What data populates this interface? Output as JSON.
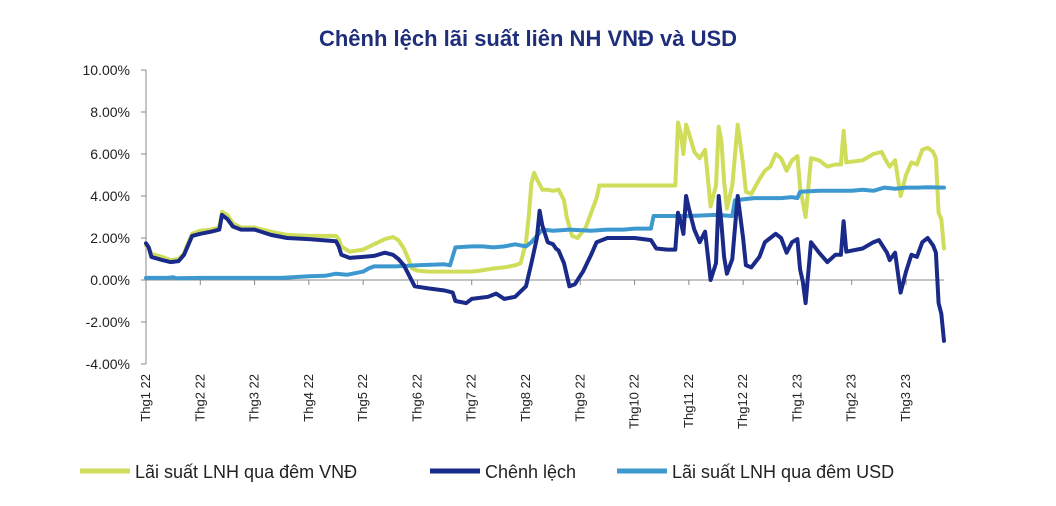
{
  "chart_data": {
    "type": "line",
    "title": "Chênh lệch lãi suất liên NH VNĐ và USD",
    "xlabel": "",
    "ylabel": "",
    "ylim": [
      -0.04,
      0.1
    ],
    "y_ticks": [
      -0.04,
      -0.02,
      0.0,
      0.02,
      0.04,
      0.06,
      0.08,
      0.1
    ],
    "y_tick_labels": [
      "-4.00%",
      "-2.00%",
      "0.00%",
      "2.00%",
      "4.00%",
      "6.00%",
      "8.00%",
      "10.00%"
    ],
    "x_range": [
      0,
      14.7
    ],
    "x_ticks": [
      0,
      1,
      2,
      3,
      4,
      5,
      6,
      7,
      8,
      9,
      10,
      11,
      12,
      13,
      14
    ],
    "x_tick_labels": [
      "Thg1 22",
      "Thg2 22",
      "Thg3 22",
      "Thg4 22",
      "Thg5 22",
      "Thg6 22",
      "Thg7 22",
      "Thg8 22",
      "Thg9 22",
      "Thg10 22",
      "Thg11 22",
      "Thg12 22",
      "Thg1 23",
      "Thg2 23",
      "Thg3 23"
    ],
    "series": [
      {
        "name": "Lãi suất LNH qua đêm VNĐ",
        "color": "#cfdd5a",
        "points": [
          [
            0,
            0.0165
          ],
          [
            0.05,
            0.0155
          ],
          [
            0.1,
            0.0125
          ],
          [
            0.3,
            0.011
          ],
          [
            0.45,
            0.0095
          ],
          [
            0.6,
            0.01
          ],
          [
            0.7,
            0.0125
          ],
          [
            0.75,
            0.016
          ],
          [
            0.85,
            0.022
          ],
          [
            1.0,
            0.0235
          ],
          [
            1.2,
            0.024
          ],
          [
            1.35,
            0.025
          ],
          [
            1.4,
            0.0325
          ],
          [
            1.5,
            0.031
          ],
          [
            1.6,
            0.027
          ],
          [
            1.75,
            0.025
          ],
          [
            2.0,
            0.025
          ],
          [
            2.3,
            0.023
          ],
          [
            2.6,
            0.0215
          ],
          [
            3.0,
            0.021
          ],
          [
            3.5,
            0.021
          ],
          [
            3.55,
            0.0195
          ],
          [
            3.6,
            0.016
          ],
          [
            3.75,
            0.0135
          ],
          [
            4.0,
            0.0145
          ],
          [
            4.2,
            0.017
          ],
          [
            4.4,
            0.0195
          ],
          [
            4.55,
            0.0205
          ],
          [
            4.65,
            0.019
          ],
          [
            4.75,
            0.015
          ],
          [
            4.85,
            0.009
          ],
          [
            4.9,
            0.0055
          ],
          [
            5.0,
            0.0045
          ],
          [
            5.2,
            0.004
          ],
          [
            5.5,
            0.004
          ],
          [
            6.0,
            0.004
          ],
          [
            6.15,
            0.0045
          ],
          [
            6.4,
            0.0055
          ],
          [
            6.6,
            0.006
          ],
          [
            6.8,
            0.007
          ],
          [
            6.9,
            0.008
          ],
          [
            7.0,
            0.018
          ],
          [
            7.05,
            0.03
          ],
          [
            7.1,
            0.046
          ],
          [
            7.15,
            0.051
          ],
          [
            7.2,
            0.048
          ],
          [
            7.3,
            0.043
          ],
          [
            7.4,
            0.043
          ],
          [
            7.5,
            0.0425
          ],
          [
            7.6,
            0.043
          ],
          [
            7.7,
            0.038
          ],
          [
            7.75,
            0.03
          ],
          [
            7.85,
            0.021
          ],
          [
            7.95,
            0.02
          ],
          [
            8.1,
            0.025
          ],
          [
            8.2,
            0.032
          ],
          [
            8.3,
            0.039
          ],
          [
            8.35,
            0.045
          ],
          [
            9.0,
            0.045
          ],
          [
            9.5,
            0.045
          ],
          [
            9.75,
            0.045
          ],
          [
            9.8,
            0.075
          ],
          [
            9.85,
            0.07
          ],
          [
            9.9,
            0.06
          ],
          [
            9.95,
            0.074
          ],
          [
            10.0,
            0.07
          ],
          [
            10.1,
            0.061
          ],
          [
            10.2,
            0.058
          ],
          [
            10.3,
            0.062
          ],
          [
            10.4,
            0.035
          ],
          [
            10.5,
            0.045
          ],
          [
            10.55,
            0.073
          ],
          [
            10.6,
            0.066
          ],
          [
            10.65,
            0.047
          ],
          [
            10.7,
            0.034
          ],
          [
            10.8,
            0.045
          ],
          [
            10.9,
            0.074
          ],
          [
            11.0,
            0.055
          ],
          [
            11.05,
            0.042
          ],
          [
            11.15,
            0.041
          ],
          [
            11.3,
            0.048
          ],
          [
            11.4,
            0.052
          ],
          [
            11.5,
            0.054
          ],
          [
            11.6,
            0.06
          ],
          [
            11.7,
            0.058
          ],
          [
            11.8,
            0.052
          ],
          [
            11.9,
            0.057
          ],
          [
            12.0,
            0.059
          ],
          [
            12.05,
            0.044
          ],
          [
            12.15,
            0.03
          ],
          [
            12.25,
            0.058
          ],
          [
            12.4,
            0.057
          ],
          [
            12.55,
            0.054
          ],
          [
            12.7,
            0.055
          ],
          [
            12.8,
            0.055
          ],
          [
            12.85,
            0.071
          ],
          [
            12.9,
            0.056
          ],
          [
            13.2,
            0.057
          ],
          [
            13.4,
            0.06
          ],
          [
            13.55,
            0.061
          ],
          [
            13.65,
            0.056
          ],
          [
            13.7,
            0.054
          ],
          [
            13.8,
            0.057
          ],
          [
            13.9,
            0.04
          ],
          [
            14.0,
            0.05
          ],
          [
            14.1,
            0.056
          ],
          [
            14.2,
            0.055
          ],
          [
            14.3,
            0.062
          ],
          [
            14.4,
            0.063
          ],
          [
            14.5,
            0.061
          ],
          [
            14.55,
            0.058
          ],
          [
            14.6,
            0.032
          ],
          [
            14.65,
            0.029
          ],
          [
            14.7,
            0.015
          ]
        ]
      },
      {
        "name": "Chênh lệch",
        "color": "#1a2a88",
        "points": [
          [
            0,
            0.0175
          ],
          [
            0.05,
            0.0155
          ],
          [
            0.1,
            0.011
          ],
          [
            0.3,
            0.0095
          ],
          [
            0.45,
            0.0085
          ],
          [
            0.6,
            0.009
          ],
          [
            0.7,
            0.012
          ],
          [
            0.75,
            0.015
          ],
          [
            0.85,
            0.021
          ],
          [
            1.0,
            0.022
          ],
          [
            1.2,
            0.023
          ],
          [
            1.35,
            0.024
          ],
          [
            1.4,
            0.031
          ],
          [
            1.5,
            0.029
          ],
          [
            1.6,
            0.0255
          ],
          [
            1.75,
            0.024
          ],
          [
            2.0,
            0.024
          ],
          [
            2.3,
            0.0215
          ],
          [
            2.6,
            0.02
          ],
          [
            3.0,
            0.0195
          ],
          [
            3.5,
            0.0185
          ],
          [
            3.55,
            0.016
          ],
          [
            3.6,
            0.012
          ],
          [
            3.75,
            0.0105
          ],
          [
            4.0,
            0.011
          ],
          [
            4.2,
            0.0115
          ],
          [
            4.4,
            0.013
          ],
          [
            4.55,
            0.012
          ],
          [
            4.65,
            0.01
          ],
          [
            4.75,
            0.007
          ],
          [
            4.85,
            0.002
          ],
          [
            4.95,
            -0.003
          ],
          [
            5.2,
            -0.004
          ],
          [
            5.5,
            -0.005
          ],
          [
            5.65,
            -0.006
          ],
          [
            5.7,
            -0.01
          ],
          [
            5.9,
            -0.011
          ],
          [
            6.0,
            -0.009
          ],
          [
            6.3,
            -0.008
          ],
          [
            6.45,
            -0.0065
          ],
          [
            6.6,
            -0.009
          ],
          [
            6.8,
            -0.008
          ],
          [
            7.0,
            -0.003
          ],
          [
            7.1,
            0.008
          ],
          [
            7.2,
            0.02
          ],
          [
            7.25,
            0.033
          ],
          [
            7.3,
            0.026
          ],
          [
            7.4,
            0.018
          ],
          [
            7.5,
            0.017
          ],
          [
            7.55,
            0.015
          ],
          [
            7.6,
            0.014
          ],
          [
            7.7,
            0.008
          ],
          [
            7.8,
            -0.003
          ],
          [
            7.9,
            -0.002
          ],
          [
            8.05,
            0.004
          ],
          [
            8.2,
            0.012
          ],
          [
            8.3,
            0.018
          ],
          [
            8.5,
            0.02
          ],
          [
            9.0,
            0.02
          ],
          [
            9.3,
            0.019
          ],
          [
            9.4,
            0.015
          ],
          [
            9.6,
            0.0145
          ],
          [
            9.75,
            0.0145
          ],
          [
            9.8,
            0.032
          ],
          [
            9.85,
            0.028
          ],
          [
            9.9,
            0.022
          ],
          [
            9.95,
            0.04
          ],
          [
            10.0,
            0.034
          ],
          [
            10.1,
            0.024
          ],
          [
            10.2,
            0.018
          ],
          [
            10.3,
            0.023
          ],
          [
            10.4,
            0.0
          ],
          [
            10.5,
            0.008
          ],
          [
            10.55,
            0.04
          ],
          [
            10.6,
            0.027
          ],
          [
            10.65,
            0.011
          ],
          [
            10.7,
            0.003
          ],
          [
            10.8,
            0.01
          ],
          [
            10.9,
            0.04
          ],
          [
            11.0,
            0.02
          ],
          [
            11.05,
            0.007
          ],
          [
            11.15,
            0.006
          ],
          [
            11.3,
            0.011
          ],
          [
            11.4,
            0.018
          ],
          [
            11.5,
            0.02
          ],
          [
            11.6,
            0.022
          ],
          [
            11.7,
            0.02
          ],
          [
            11.8,
            0.013
          ],
          [
            11.9,
            0.018
          ],
          [
            12.0,
            0.0195
          ],
          [
            12.05,
            0.005
          ],
          [
            12.1,
            -0.001
          ],
          [
            12.15,
            -0.011
          ],
          [
            12.25,
            0.018
          ],
          [
            12.4,
            0.013
          ],
          [
            12.55,
            0.0085
          ],
          [
            12.7,
            0.012
          ],
          [
            12.8,
            0.012
          ],
          [
            12.85,
            0.028
          ],
          [
            12.9,
            0.0135
          ],
          [
            13.2,
            0.015
          ],
          [
            13.4,
            0.018
          ],
          [
            13.5,
            0.019
          ],
          [
            13.65,
            0.013
          ],
          [
            13.7,
            0.0095
          ],
          [
            13.8,
            0.013
          ],
          [
            13.9,
            -0.006
          ],
          [
            14.0,
            0.004
          ],
          [
            14.1,
            0.012
          ],
          [
            14.2,
            0.011
          ],
          [
            14.3,
            0.018
          ],
          [
            14.4,
            0.02
          ],
          [
            14.5,
            0.0165
          ],
          [
            14.55,
            0.013
          ],
          [
            14.6,
            -0.011
          ],
          [
            14.65,
            -0.016
          ],
          [
            14.7,
            -0.029
          ]
        ]
      },
      {
        "name": "Lãi suất LNH qua đêm USD",
        "color": "#3d98cf",
        "points": [
          [
            0,
            0.001
          ],
          [
            0.4,
            0.001
          ],
          [
            0.5,
            0.0013
          ],
          [
            0.55,
            0.0008
          ],
          [
            1.0,
            0.001
          ],
          [
            1.5,
            0.001
          ],
          [
            2.0,
            0.001
          ],
          [
            2.5,
            0.001
          ],
          [
            3.0,
            0.0018
          ],
          [
            3.3,
            0.002
          ],
          [
            3.5,
            0.003
          ],
          [
            3.7,
            0.0025
          ],
          [
            4.0,
            0.004
          ],
          [
            4.1,
            0.0055
          ],
          [
            4.2,
            0.0065
          ],
          [
            4.6,
            0.0065
          ],
          [
            5.0,
            0.007
          ],
          [
            5.5,
            0.0075
          ],
          [
            5.6,
            0.007
          ],
          [
            5.7,
            0.0155
          ],
          [
            6.0,
            0.016
          ],
          [
            6.2,
            0.016
          ],
          [
            6.4,
            0.0155
          ],
          [
            6.6,
            0.016
          ],
          [
            6.8,
            0.017
          ],
          [
            7.0,
            0.016
          ],
          [
            7.1,
            0.018
          ],
          [
            7.2,
            0.021
          ],
          [
            7.3,
            0.024
          ],
          [
            7.5,
            0.0235
          ],
          [
            7.8,
            0.024
          ],
          [
            8.2,
            0.0235
          ],
          [
            8.5,
            0.024
          ],
          [
            8.8,
            0.024
          ],
          [
            9.0,
            0.0245
          ],
          [
            9.3,
            0.0245
          ],
          [
            9.35,
            0.0305
          ],
          [
            9.7,
            0.0305
          ],
          [
            10.0,
            0.0305
          ],
          [
            10.5,
            0.031
          ],
          [
            10.8,
            0.0305
          ],
          [
            10.85,
            0.038
          ],
          [
            11.2,
            0.039
          ],
          [
            11.5,
            0.039
          ],
          [
            11.7,
            0.039
          ],
          [
            11.9,
            0.0395
          ],
          [
            12.0,
            0.039
          ],
          [
            12.05,
            0.042
          ],
          [
            12.4,
            0.0425
          ],
          [
            12.8,
            0.0425
          ],
          [
            13.0,
            0.0425
          ],
          [
            13.2,
            0.043
          ],
          [
            13.4,
            0.0425
          ],
          [
            13.6,
            0.044
          ],
          [
            13.8,
            0.0435
          ],
          [
            14.0,
            0.044
          ],
          [
            14.2,
            0.044
          ],
          [
            14.4,
            0.0442
          ],
          [
            14.7,
            0.044
          ]
        ]
      }
    ],
    "legend": [
      "Lãi suất LNH qua đêm VNĐ",
      "Chênh lệch",
      "Lãi suất LNH qua đêm USD"
    ],
    "legend_position": "bottom",
    "grid": false
  }
}
